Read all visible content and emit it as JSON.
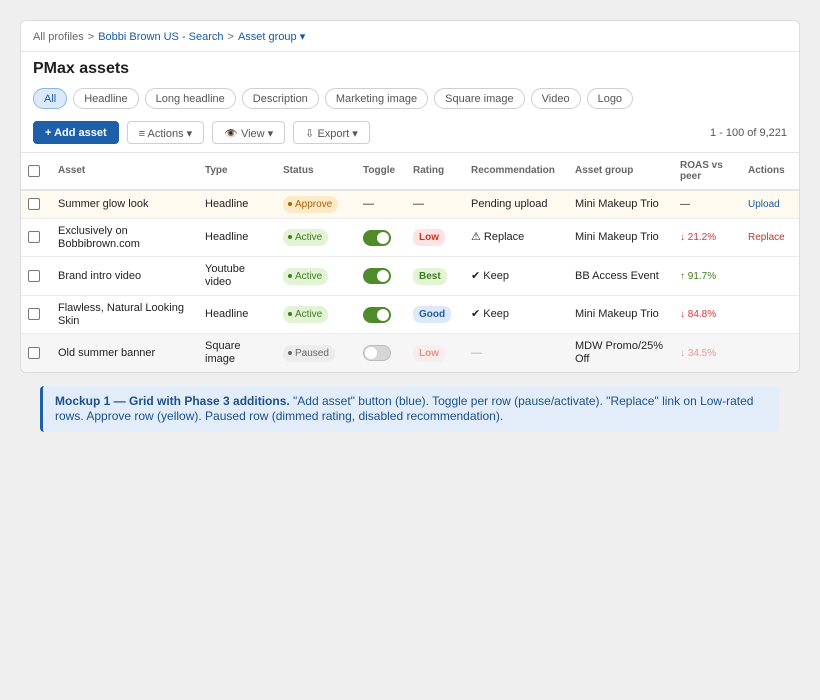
{
  "breadcrumb": {
    "root": "All profiles",
    "sep1": ">",
    "profile": "Bobbi Brown US - Search",
    "sep2": ">",
    "group": "Asset group ▾"
  },
  "title": "PMax assets",
  "filters": [
    "All",
    "Headline",
    "Long headline",
    "Description",
    "Marketing image",
    "Square image",
    "Video",
    "Logo"
  ],
  "toolbar": {
    "add": "+ Add asset",
    "actions": "≡ Actions ▾",
    "view": "👁️ View ▾",
    "export": "⇩ Export ▾",
    "count": "1 - 100 of 9,221"
  },
  "table": {
    "headers": [
      "Asset",
      "Type",
      "Status",
      "Toggle",
      "Rating",
      "Recommendation",
      "Asset group",
      "ROAS vs peer",
      "Actions"
    ],
    "rows": [
      {
        "asset": "Summer glow look",
        "type": "Headline",
        "status": "Approve",
        "toggle": "—",
        "rating": "—",
        "recommendation": "Pending upload",
        "asset_group": "Mini Makeup Trio",
        "roas": "—",
        "action": "Upload"
      },
      {
        "asset": "Exclusively on Bobbibrown.com",
        "type": "Headline",
        "status": "Active",
        "rating": "Low",
        "recommendation": "⚠ Replace",
        "asset_group": "Mini Makeup Trio",
        "roas": "↓ 21.2%",
        "action": "Replace"
      },
      {
        "asset": "Brand intro video",
        "type": "Youtube video",
        "status": "Active",
        "rating": "Best",
        "recommendation": "✔ Keep",
        "asset_group": "BB Access Event",
        "roas": "↑ 91.7%"
      },
      {
        "asset": "Flawless, Natural Looking Skin",
        "type": "Headline",
        "status": "Active",
        "rating": "Good",
        "recommendation": "✔ Keep",
        "asset_group": "Mini Makeup Trio",
        "roas": "↓ 84.8%"
      },
      {
        "asset": "Old summer banner",
        "type": "Square image",
        "status": "Paused",
        "rating": "Low",
        "recommendation": "—",
        "asset_group": "MDW Promo/25% Off",
        "roas": "↓ 34.5%"
      }
    ]
  },
  "note": {
    "bold": "Mockup 1 — Grid with Phase 3 additions.",
    "text": "\"Add asset\" button (blue). Toggle per row (pause/activate). \"Replace\" link on Low-rated rows. Approve row (yellow). Paused row (dimmed rating, disabled recommendation)."
  }
}
